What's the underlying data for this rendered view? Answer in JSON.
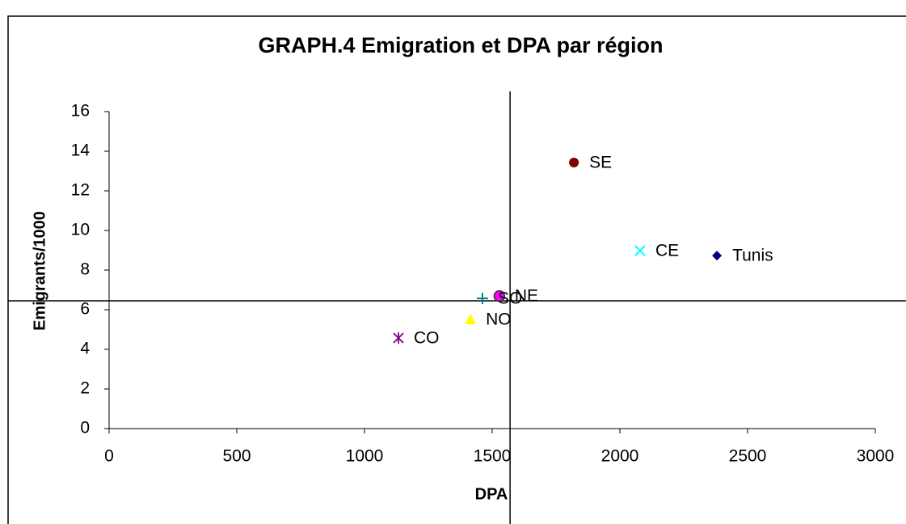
{
  "chart_data": {
    "type": "scatter",
    "title": "GRAPH.4 Emigration et DPA par région",
    "xlabel": "DPA",
    "ylabel": "Emigrants/1000",
    "xlim": [
      0,
      3000
    ],
    "xticks": [
      0,
      500,
      1000,
      1500,
      2000,
      2500,
      3000
    ],
    "ylim": [
      0,
      16
    ],
    "yticks": [
      0,
      2,
      4,
      6,
      8,
      10,
      12,
      14,
      16
    ],
    "reference_lines": {
      "x": 1570,
      "y": 6.45
    },
    "series": [
      {
        "name": "Tunis",
        "color": "#000080",
        "marker": "diamond",
        "x": [
          2380
        ],
        "values": [
          8.73
        ]
      },
      {
        "name": "SE",
        "color": "#800000",
        "marker": "circle",
        "x": [
          1820
        ],
        "values": [
          13.43
        ]
      },
      {
        "name": "CE",
        "color": "#00ffff",
        "marker": "x",
        "x": [
          2079
        ],
        "values": [
          8.98
        ]
      },
      {
        "name": "NE",
        "color": "#ff00ff",
        "marker": "circle-outline",
        "x": [
          1528
        ],
        "values": [
          6.69
        ]
      },
      {
        "name": "SO",
        "color": "#008080",
        "marker": "plus",
        "x": [
          1462
        ],
        "values": [
          6.57
        ]
      },
      {
        "name": "NO",
        "color": "#ffff00",
        "marker": "triangle",
        "x": [
          1415
        ],
        "values": [
          5.51
        ]
      },
      {
        "name": "CO",
        "color": "#800080",
        "marker": "asterisk",
        "x": [
          1133
        ],
        "values": [
          4.57
        ]
      }
    ]
  }
}
